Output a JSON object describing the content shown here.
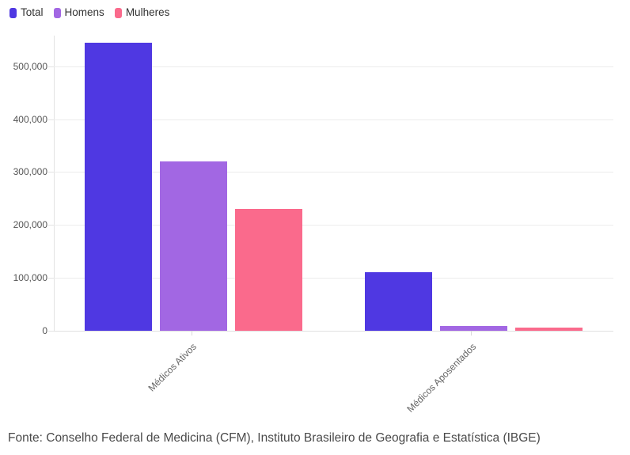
{
  "legend": {
    "position": "top-left",
    "items": [
      "Total",
      "Homens",
      "Mulheres"
    ]
  },
  "chart_data": {
    "type": "bar",
    "title": "",
    "xlabel": "",
    "ylabel": "",
    "categories": [
      "Médicos Ativos",
      "Médicos Aposentados"
    ],
    "series": [
      {
        "name": "Total",
        "color": "#4F38E2",
        "values": [
          545000,
          111000
        ]
      },
      {
        "name": "Homens",
        "color": "#A267E3",
        "values": [
          320000,
          8500
        ]
      },
      {
        "name": "Mulheres",
        "color": "#FA6A8C",
        "values": [
          230000,
          6000
        ]
      }
    ],
    "ylim": [
      0,
      558000
    ],
    "yticks": [
      0,
      100000,
      200000,
      300000,
      400000,
      500000
    ],
    "ytick_labels": [
      "0",
      "100,000",
      "200,000",
      "300,000",
      "400,000",
      "500,000"
    ],
    "grid": true,
    "legend_position": "top-left"
  },
  "footer": {
    "source": "Fonte: Conselho Federal de Medicina (CFM), Instituto Brasileiro de Geografia e Estatística (IBGE)"
  }
}
